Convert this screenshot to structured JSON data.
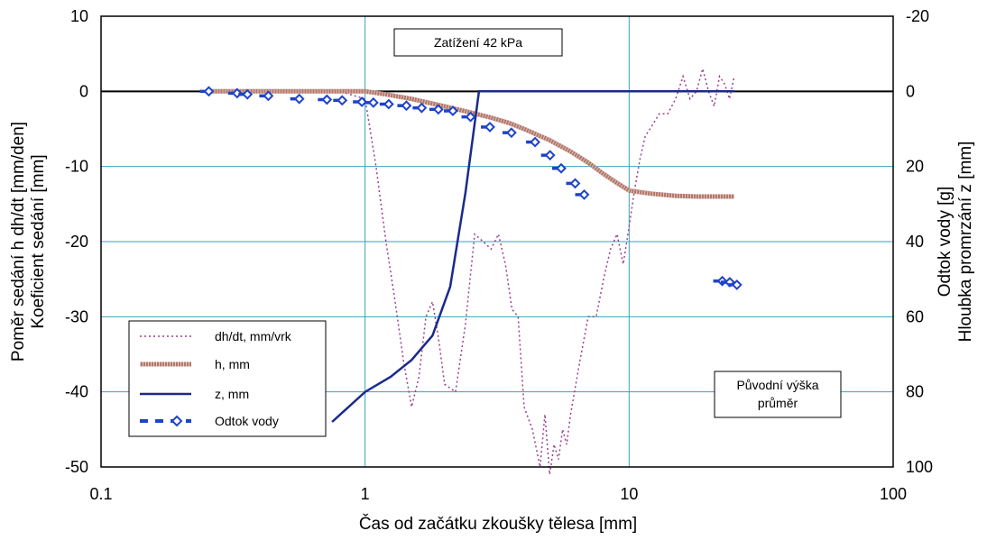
{
  "chart_data": {
    "type": "line",
    "x_scale": "log",
    "xlim": [
      0.1,
      100
    ],
    "xlabel": "Čas od začátku zkoušky tělesa [mm]",
    "x_ticks": [
      0.1,
      1,
      10,
      100
    ],
    "x_tick_labels": [
      "0.1",
      "1",
      "10",
      "100"
    ],
    "ylim": [
      -50,
      10
    ],
    "y_ticks": [
      10,
      0,
      -10,
      -20,
      -30,
      -40,
      -50
    ],
    "y_tick_labels": [
      "10",
      "0",
      "-10",
      "-20",
      "-30",
      "-40",
      "-50"
    ],
    "ylabel_line1": "Poměr sedání h dh/dt [mm/den]",
    "ylabel_line2": "Koeficient sedání [mm]",
    "y2lim": [
      -20,
      100
    ],
    "y2_inverted": true,
    "y2_ticks": [
      -20,
      0,
      20,
      40,
      60,
      80,
      100
    ],
    "y2_tick_labels": [
      "-20",
      "0",
      "20",
      "40",
      "60",
      "80",
      "100"
    ],
    "y2label_line1": "Odtok vody [g]",
    "y2label_line2": "Hloubka promrzání z [mm]",
    "grid": true,
    "legend_position": "bottom-left",
    "annotations": [
      "Zatížení 42 kPa",
      "Původní výška",
      "průměr"
    ],
    "colors": {
      "dhdt": "#9b3f8c",
      "h": "#b3776a",
      "z": "#1a2a8c",
      "odtok": "#1f43c8",
      "grid": "#3aa0c0",
      "zero_line": "#000000"
    },
    "series": [
      {
        "name": "dh/dt,  mm/vrk",
        "axis": "left",
        "style": "dotted",
        "x": [
          0.25,
          0.4,
          0.6,
          0.8,
          1.0,
          1.1,
          1.2,
          1.3,
          1.4,
          1.5,
          1.6,
          1.7,
          1.8,
          1.9,
          2.0,
          2.2,
          2.4,
          2.6,
          2.8,
          3.0,
          3.2,
          3.4,
          3.6,
          3.8,
          4.0,
          4.3,
          4.6,
          4.8,
          5.0,
          5.2,
          5.4,
          5.6,
          5.8,
          6.0,
          6.5,
          7.0,
          7.5,
          8.0,
          8.5,
          9.0,
          9.5,
          10.0,
          10.5,
          11.0,
          11.5,
          12.0,
          13.0,
          14.0,
          15.0,
          16.0,
          17.0,
          18.0,
          19.0,
          20.0,
          21.0,
          22.0,
          23.0,
          24.0,
          25.0
        ],
        "y": [
          0,
          0,
          0,
          0,
          -1,
          -10,
          -20,
          -28,
          -36,
          -42,
          -38,
          -30,
          -28,
          -33,
          -39,
          -40,
          -31,
          -19,
          -20,
          -21,
          -19,
          -23,
          -29,
          -30,
          -42,
          -45,
          -50,
          -43,
          -51,
          -47,
          -49,
          -45,
          -47,
          -43,
          -36,
          -30,
          -30,
          -25,
          -21,
          -19,
          -23,
          -18,
          -13,
          -9,
          -6,
          -5,
          -3,
          -3,
          -1,
          2,
          -1,
          0,
          3,
          0,
          -2,
          2,
          1,
          -1,
          2
        ]
      },
      {
        "name": "h,  mm",
        "axis": "left",
        "style": "thick-hatched",
        "x": [
          0.25,
          0.4,
          0.6,
          0.8,
          1.0,
          1.2,
          1.5,
          2.0,
          2.5,
          3.0,
          3.5,
          4.0,
          4.5,
          5.0,
          6.0,
          7.0,
          8.0,
          9.0,
          10.0,
          12.0,
          15.0,
          18.0,
          20.0,
          25.0
        ],
        "y": [
          0,
          0,
          0,
          0,
          0,
          -0.4,
          -1.0,
          -2.0,
          -2.8,
          -3.5,
          -4.2,
          -5.0,
          -5.8,
          -6.5,
          -8.0,
          -9.5,
          -11.0,
          -12.2,
          -13.2,
          -13.6,
          -13.9,
          -14.0,
          -14.0,
          -14.0
        ]
      },
      {
        "name": "z,  mm",
        "axis": "right",
        "style": "solid",
        "x": [
          0.75,
          1.0,
          1.25,
          1.5,
          1.8,
          2.1,
          2.4,
          2.7,
          3.0,
          5.0,
          10.0,
          20.0,
          25.0
        ],
        "y": [
          88,
          80,
          76,
          71.5,
          65,
          52,
          27,
          0,
          0,
          0,
          0,
          0,
          0
        ]
      },
      {
        "name": "Odtok vody",
        "axis": "right",
        "style": "dashed-diamond",
        "x": [
          0.25,
          0.32,
          0.35,
          0.42,
          0.55,
          0.7,
          0.8,
          0.95,
          1.05,
          1.2,
          1.4,
          1.6,
          1.85,
          2.1,
          2.45,
          2.9,
          3.5,
          4.3,
          4.9,
          5.4,
          6.1,
          6.6,
          22.0,
          23.5,
          25.0
        ],
        "y": [
          0,
          0.5,
          0.8,
          1.2,
          2.0,
          2.2,
          2.4,
          2.8,
          3.0,
          3.4,
          3.8,
          4.4,
          4.8,
          5.2,
          6.8,
          9.5,
          11.0,
          13.5,
          17.0,
          20.5,
          24.5,
          27.5,
          50.5,
          50.8,
          51.5
        ]
      }
    ]
  }
}
